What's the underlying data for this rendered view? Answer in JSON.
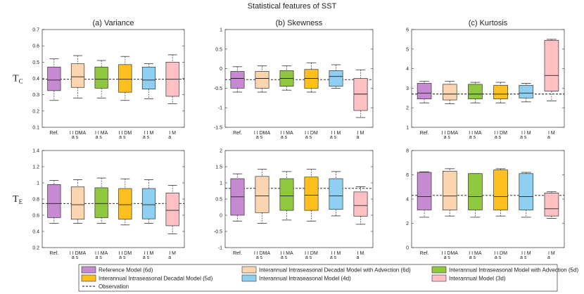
{
  "figure_title": "Statistical features of SST",
  "row_labels": [
    {
      "main": "T",
      "sub": "C"
    },
    {
      "main": "T",
      "sub": "E"
    }
  ],
  "categories": [
    {
      "main": "Ref.",
      "sub": ""
    },
    {
      "main": "I I DMA",
      "sub": "a s"
    },
    {
      "main": "I I MA",
      "sub": "a s"
    },
    {
      "main": "I I DM",
      "sub": "a s"
    },
    {
      "main": "I I M",
      "sub": "a s"
    },
    {
      "main": "I M",
      "sub": "a"
    }
  ],
  "colors": [
    "#c58ad0",
    "#fbd5b0",
    "#8fc73f",
    "#ffbf1f",
    "#8fcff2",
    "#ffc0c4"
  ],
  "legend": {
    "items": [
      "Reference Model (6d)",
      "Interannual Intraseasonal Decadal Model with Advection (6d)",
      "Interannual Intraseasonal Model with Advection (5d)",
      "Interannual Intraseasonal Decadal Model (5d)",
      "Interannual Intraseasonal Model (4d)",
      "Interannual Model (3d)"
    ],
    "observation": "Observation"
  },
  "chart_data": [
    {
      "type": "boxplot",
      "title": "(a) Variance",
      "row": "T_C",
      "ylim": [
        0.1,
        0.7
      ],
      "yticks": [
        "0.1",
        "0.2",
        "0.3",
        "0.4",
        "0.5",
        "0.6",
        "0.7"
      ],
      "observation": 0.395,
      "boxes": [
        {
          "min": 0.265,
          "q1": 0.325,
          "median": 0.39,
          "q3": 0.47,
          "max": 0.52
        },
        {
          "min": 0.28,
          "q1": 0.345,
          "median": 0.41,
          "q3": 0.49,
          "max": 0.54
        },
        {
          "min": 0.28,
          "q1": 0.34,
          "median": 0.395,
          "q3": 0.47,
          "max": 0.51
        },
        {
          "min": 0.265,
          "q1": 0.315,
          "median": 0.395,
          "q3": 0.485,
          "max": 0.535
        },
        {
          "min": 0.275,
          "q1": 0.335,
          "median": 0.39,
          "q3": 0.47,
          "max": 0.49
        },
        {
          "min": 0.245,
          "q1": 0.29,
          "median": 0.395,
          "q3": 0.5,
          "max": 0.545
        }
      ]
    },
    {
      "type": "boxplot",
      "title": "(b) Skewness",
      "row": "T_C",
      "ylim": [
        -1.5,
        1
      ],
      "yticks": [
        "-1.5",
        "-1",
        "-0.5",
        "0",
        "0.5",
        "1"
      ],
      "observation": -0.28,
      "boxes": [
        {
          "min": -0.6,
          "q1": -0.5,
          "median": -0.25,
          "q3": -0.07,
          "max": 0.05
        },
        {
          "min": -0.6,
          "q1": -0.5,
          "median": -0.25,
          "q3": -0.07,
          "max": 0.07
        },
        {
          "min": -0.55,
          "q1": -0.45,
          "median": -0.25,
          "q3": -0.05,
          "max": 0.07
        },
        {
          "min": -0.6,
          "q1": -0.5,
          "median": -0.25,
          "q3": -0.02,
          "max": 0.15
        },
        {
          "min": -0.5,
          "q1": -0.45,
          "median": -0.2,
          "q3": -0.05,
          "max": 0.1
        },
        {
          "min": -1.25,
          "q1": -1.07,
          "median": -0.65,
          "q3": -0.25,
          "max": -0.03
        }
      ]
    },
    {
      "type": "boxplot",
      "title": "(c) Kurtosis",
      "row": "T_C",
      "ylim": [
        1,
        6
      ],
      "yticks": [
        "1",
        "2",
        "3",
        "4",
        "5",
        "6"
      ],
      "observation": 2.7,
      "boxes": [
        {
          "min": 2.25,
          "q1": 2.45,
          "median": 2.75,
          "q3": 3.25,
          "max": 3.35
        },
        {
          "min": 2.2,
          "q1": 2.4,
          "median": 2.7,
          "q3": 3.2,
          "max": 3.35
        },
        {
          "min": 2.25,
          "q1": 2.45,
          "median": 2.7,
          "q3": 3.2,
          "max": 3.3
        },
        {
          "min": 2.25,
          "q1": 2.45,
          "median": 2.7,
          "q3": 3.15,
          "max": 3.3
        },
        {
          "min": 2.3,
          "q1": 2.5,
          "median": 2.75,
          "q3": 3.15,
          "max": 3.25
        },
        {
          "min": 2.35,
          "q1": 2.85,
          "median": 3.65,
          "q3": 5.45,
          "max": 5.5
        }
      ]
    },
    {
      "type": "boxplot",
      "title": "",
      "row": "T_E",
      "ylim": [
        0.2,
        1.4
      ],
      "yticks": [
        "0.2",
        "0.4",
        "0.6",
        "0.8",
        "1",
        "1.2",
        "1.4"
      ],
      "observation": 0.745,
      "boxes": [
        {
          "min": 0.5,
          "q1": 0.57,
          "median": 0.745,
          "q3": 0.98,
          "max": 1.03
        },
        {
          "min": 0.5,
          "q1": 0.55,
          "median": 0.73,
          "q3": 0.95,
          "max": 1.04
        },
        {
          "min": 0.5,
          "q1": 0.57,
          "median": 0.745,
          "q3": 0.94,
          "max": 1.06
        },
        {
          "min": 0.48,
          "q1": 0.55,
          "median": 0.73,
          "q3": 0.93,
          "max": 1.05
        },
        {
          "min": 0.5,
          "q1": 0.555,
          "median": 0.73,
          "q3": 0.93,
          "max": 1.04
        },
        {
          "min": 0.37,
          "q1": 0.47,
          "median": 0.66,
          "q3": 0.875,
          "max": 0.97
        }
      ]
    },
    {
      "type": "boxplot",
      "title": "",
      "row": "T_E",
      "ylim": [
        -1,
        2
      ],
      "yticks": [
        "-1",
        "-0.5",
        "0",
        "0.5",
        "1",
        "1.5",
        "2"
      ],
      "observation": 0.83,
      "boxes": [
        {
          "min": -0.18,
          "q1": 0.0,
          "median": 0.57,
          "q3": 1.13,
          "max": 1.28
        },
        {
          "min": -0.25,
          "q1": 0.08,
          "median": 0.6,
          "q3": 1.2,
          "max": 1.42
        },
        {
          "min": -0.15,
          "q1": 0.15,
          "median": 0.6,
          "q3": 1.13,
          "max": 1.35
        },
        {
          "min": -0.18,
          "q1": 0.15,
          "median": 0.62,
          "q3": 1.18,
          "max": 1.42
        },
        {
          "min": -0.02,
          "q1": 0.18,
          "median": 0.6,
          "q3": 1.13,
          "max": 1.35
        },
        {
          "min": -0.28,
          "q1": -0.03,
          "median": 0.3,
          "q3": 0.72,
          "max": 0.88
        }
      ]
    },
    {
      "type": "boxplot",
      "title": "",
      "row": "T_E",
      "ylim": [
        0,
        8
      ],
      "yticks": [
        "0",
        "2",
        "4",
        "6",
        "8"
      ],
      "observation": 4.3,
      "boxes": [
        {
          "min": 2.5,
          "q1": 3.1,
          "median": 4.2,
          "q3": 6.2,
          "max": 6.25
        },
        {
          "min": 2.6,
          "q1": 3.1,
          "median": 4.25,
          "q3": 6.3,
          "max": 6.5
        },
        {
          "min": 2.5,
          "q1": 3.1,
          "median": 4.2,
          "q3": 6.1,
          "max": 6.1
        },
        {
          "min": 2.6,
          "q1": 3.1,
          "median": 4.2,
          "q3": 6.4,
          "max": 6.5
        },
        {
          "min": 2.5,
          "q1": 3.1,
          "median": 4.2,
          "q3": 6.1,
          "max": 6.2
        },
        {
          "min": 2.4,
          "q1": 2.6,
          "median": 3.2,
          "q3": 4.5,
          "max": 4.6
        }
      ]
    }
  ]
}
